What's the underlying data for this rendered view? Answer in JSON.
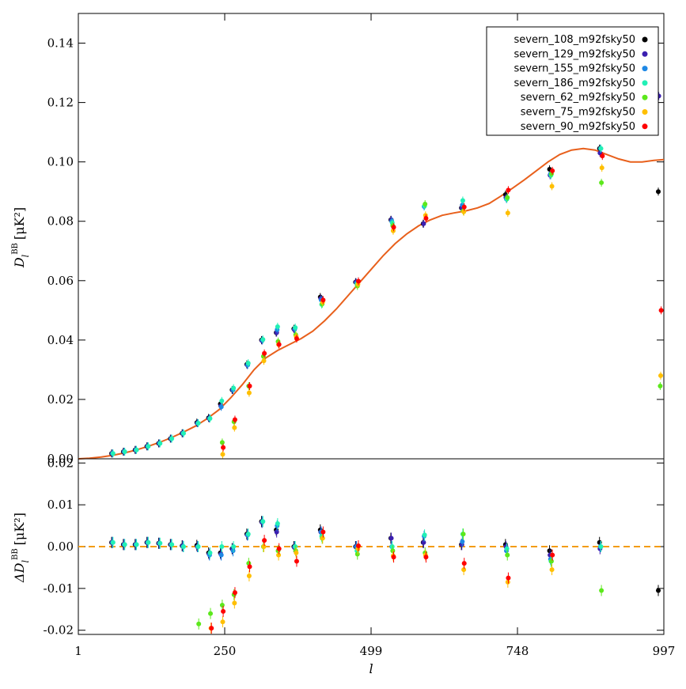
{
  "chart_data": [
    {
      "panel": "top",
      "type": "scatter",
      "xlabel": "l",
      "ylabel_main": "D",
      "ylabel_sub": "l",
      "ylabel_sup": "BB",
      "ylabel_unit": "[μK²]",
      "xlim": [
        1,
        997
      ],
      "ylim": [
        0.0,
        0.15
      ],
      "xticks": [
        1,
        250,
        499,
        748,
        997
      ],
      "xtick_labels": [
        "1",
        "250",
        "499",
        "748",
        "997"
      ],
      "yticks": [
        0.0,
        0.02,
        0.04,
        0.06,
        0.08,
        0.1,
        0.12,
        0.14
      ],
      "ytick_labels": [
        "0.00",
        "0.02",
        "0.04",
        "0.06",
        "0.08",
        "0.10",
        "0.12",
        "0.14"
      ],
      "legend_position": "top-right",
      "model_curve": {
        "color": "#e8601c",
        "x": [
          1,
          20,
          40,
          60,
          80,
          100,
          120,
          140,
          160,
          180,
          200,
          220,
          240,
          260,
          280,
          300,
          320,
          340,
          360,
          380,
          400,
          420,
          440,
          460,
          480,
          500,
          520,
          540,
          560,
          580,
          600,
          620,
          640,
          660,
          680,
          700,
          720,
          740,
          760,
          780,
          800,
          820,
          840,
          860,
          880,
          900,
          920,
          940,
          960,
          980,
          997
        ],
        "y": [
          0.0,
          0.0002,
          0.0006,
          0.0012,
          0.002,
          0.003,
          0.0042,
          0.0056,
          0.0072,
          0.009,
          0.011,
          0.0135,
          0.0165,
          0.0205,
          0.025,
          0.03,
          0.034,
          0.0365,
          0.0385,
          0.0405,
          0.043,
          0.0465,
          0.0505,
          0.055,
          0.0595,
          0.064,
          0.0685,
          0.0725,
          0.0758,
          0.0785,
          0.0805,
          0.082,
          0.0828,
          0.0835,
          0.0845,
          0.086,
          0.0885,
          0.0912,
          0.094,
          0.097,
          0.1,
          0.1025,
          0.104,
          0.1045,
          0.104,
          0.1025,
          0.101,
          0.1,
          0.1,
          0.1005,
          0.1008
        ]
      },
      "x": [
        60,
        80,
        100,
        120,
        140,
        160,
        180,
        205,
        225,
        245,
        265,
        290,
        315,
        340,
        370,
        415,
        475,
        535,
        590,
        655,
        730,
        805,
        890,
        990
      ],
      "series": [
        {
          "name": "severn_108_m92fsky50",
          "color": "#000000",
          "values": [
            0.0018,
            0.0024,
            0.003,
            0.0042,
            0.0052,
            0.0068,
            0.0086,
            0.0122,
            0.0138,
            0.0185,
            0.0232,
            0.0318,
            0.04,
            0.0425,
            0.0438,
            0.0545,
            0.0595,
            0.0805,
            0.0792,
            0.0845,
            0.089,
            0.0975,
            0.1045,
            0.09
          ]
        },
        {
          "name": "severn_129_m92fsky50",
          "color": "#3b1fb0",
          "values": [
            0.0018,
            0.0024,
            0.003,
            0.0042,
            0.0052,
            0.0068,
            0.0086,
            0.012,
            0.0136,
            0.0178,
            0.0232,
            0.0316,
            0.0398,
            0.0425,
            0.0435,
            0.054,
            0.0595,
            0.0805,
            0.0792,
            0.0845,
            0.088,
            0.0955,
            0.103,
            0.1222
          ]
        },
        {
          "name": "severn_155_m92fsky50",
          "color": "#1e88e5",
          "values": [
            0.0018,
            0.0024,
            0.003,
            0.0042,
            0.0052,
            0.0068,
            0.0086,
            0.012,
            0.0136,
            0.0175,
            0.0232,
            0.0316,
            0.04,
            0.0435,
            0.0438,
            0.0535,
            0.0592,
            0.08,
            0.085,
            0.0855,
            0.0875,
            0.096,
            0.1045,
            null
          ]
        },
        {
          "name": "severn_186_m92fsky50",
          "color": "#21f0b6",
          "values": [
            0.0018,
            0.0024,
            0.003,
            0.0042,
            0.0052,
            0.0068,
            0.0086,
            0.012,
            0.0136,
            0.0195,
            0.0238,
            0.0322,
            0.0402,
            0.0445,
            0.0442,
            0.052,
            0.0588,
            0.0795,
            0.0852,
            0.087,
            0.0875,
            0.0955,
            0.1045,
            null
          ]
        },
        {
          "name": "severn_62_m92fsky50",
          "color": "#5ce81c",
          "values": [
            null,
            null,
            null,
            null,
            null,
            null,
            null,
            null,
            null,
            0.0055,
            0.0125,
            0.0245,
            0.0345,
            0.0395,
            0.0418,
            0.0522,
            0.0582,
            0.0785,
            0.0858,
            0.0835,
            0.088,
            0.096,
            0.093,
            0.0245
          ]
        },
        {
          "name": "severn_75_m92fsky50",
          "color": "#ffbf00",
          "values": [
            null,
            null,
            null,
            null,
            null,
            null,
            null,
            null,
            null,
            0.0015,
            0.0105,
            0.0222,
            0.033,
            0.0385,
            0.0412,
            0.0528,
            0.0588,
            0.0768,
            0.082,
            0.0832,
            0.0828,
            0.0918,
            0.098,
            0.028
          ]
        },
        {
          "name": "severn_90_m92fsky50",
          "color": "#ff0000",
          "values": [
            null,
            null,
            null,
            null,
            null,
            null,
            null,
            null,
            null,
            0.0038,
            0.0132,
            0.0245,
            0.0355,
            0.0385,
            0.0405,
            0.0535,
            0.0598,
            0.078,
            0.081,
            0.0848,
            0.0905,
            0.097,
            0.102,
            0.05
          ]
        }
      ]
    },
    {
      "panel": "bottom",
      "type": "scatter",
      "xlabel": "l",
      "ylabel_main": "ΔD",
      "ylabel_sub": "l",
      "ylabel_sup": "BB",
      "ylabel_unit": "[μK²]",
      "xlim": [
        1,
        997
      ],
      "ylim": [
        -0.021,
        0.021
      ],
      "yticks": [
        -0.02,
        -0.01,
        0.0,
        0.01,
        0.02
      ],
      "ytick_labels": [
        "-0.02",
        "-0.01",
        "0.00",
        "0.01",
        "0.02"
      ],
      "zero_line_color": "#f39c12",
      "x": [
        60,
        80,
        100,
        120,
        140,
        160,
        180,
        205,
        225,
        245,
        265,
        290,
        315,
        340,
        370,
        415,
        475,
        535,
        590,
        655,
        730,
        805,
        890,
        990
      ],
      "series": [
        {
          "name": "severn_108_m92fsky50",
          "color": "#000000",
          "values": [
            0.001,
            0.0005,
            0.0005,
            0.001,
            0.0008,
            0.0005,
            0.0002,
            0.0003,
            -0.0015,
            -0.0015,
            -0.0005,
            0.003,
            0.006,
            0.004,
            0.0,
            0.004,
            0.0,
            0.002,
            0.001,
            0.0005,
            0.0005,
            -0.001,
            0.001,
            -0.0105
          ]
        },
        {
          "name": "severn_129_m92fsky50",
          "color": "#3b1fb0",
          "values": [
            0.001,
            0.0005,
            0.0005,
            0.001,
            0.0008,
            0.0005,
            0.0002,
            0.0,
            -0.0018,
            -0.0018,
            -0.0005,
            0.0028,
            0.0058,
            0.0035,
            -0.0002,
            0.0035,
            0.0,
            0.002,
            0.001,
            0.0005,
            0.0,
            -0.002,
            -0.0005,
            null
          ]
        },
        {
          "name": "severn_155_m92fsky50",
          "color": "#1e88e5",
          "values": [
            0.001,
            0.0005,
            0.0005,
            0.001,
            0.0008,
            0.0005,
            0.0,
            0.0,
            -0.002,
            -0.002,
            -0.001,
            0.0028,
            0.006,
            0.005,
            0.0,
            0.0035,
            0.0,
            0.0,
            0.0025,
            0.0012,
            -0.001,
            -0.003,
            0.0,
            null
          ]
        },
        {
          "name": "severn_186_m92fsky50",
          "color": "#21f0b6",
          "values": [
            0.001,
            0.0005,
            0.0005,
            0.001,
            0.0008,
            0.0005,
            0.0,
            0.0,
            -0.0015,
            0.0,
            0.0,
            0.003,
            0.006,
            0.0055,
            0.0,
            0.0025,
            -0.001,
            0.0,
            0.0028,
            0.003,
            -0.0005,
            -0.0035,
            0.0,
            null
          ]
        },
        {
          "name": "severn_62_m92fsky50",
          "color": "#5ce81c",
          "values": [
            null,
            null,
            null,
            null,
            null,
            null,
            null,
            -0.0185,
            -0.016,
            -0.014,
            -0.0115,
            -0.004,
            0.0,
            -0.001,
            -0.001,
            0.002,
            -0.0018,
            -0.001,
            -0.0015,
            0.003,
            -0.002,
            -0.0035,
            -0.0105,
            null
          ]
        },
        {
          "name": "severn_75_m92fsky50",
          "color": "#ffbf00",
          "values": [
            null,
            null,
            null,
            null,
            null,
            null,
            null,
            null,
            -0.0195,
            -0.018,
            -0.0135,
            -0.007,
            0.0,
            -0.002,
            -0.0015,
            0.002,
            -0.0005,
            -0.0022,
            -0.002,
            -0.0055,
            -0.0085,
            -0.0055,
            null,
            null
          ]
        },
        {
          "name": "severn_90_m92fsky50",
          "color": "#ff0000",
          "values": [
            null,
            null,
            null,
            null,
            null,
            null,
            null,
            null,
            -0.0195,
            -0.0155,
            -0.011,
            -0.0048,
            0.0015,
            -0.0005,
            -0.0035,
            0.0035,
            0.0002,
            -0.0025,
            -0.0025,
            -0.004,
            -0.0075,
            -0.002,
            null,
            null
          ]
        }
      ]
    }
  ]
}
